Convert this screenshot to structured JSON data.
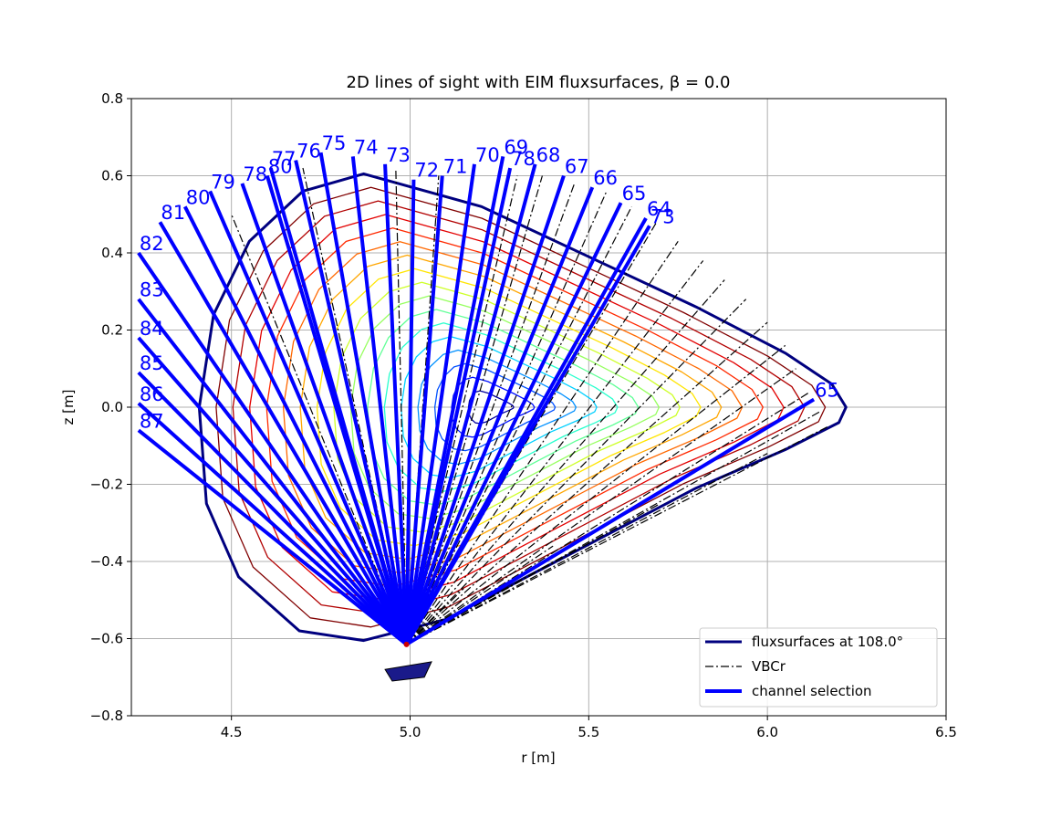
{
  "chart_data": {
    "type": "line",
    "title": "2D lines of sight with EIM fluxsurfaces, β = 0.0",
    "xlabel": "r [m]",
    "ylabel": "z [m]",
    "xlim": [
      4.22,
      6.5
    ],
    "ylim": [
      -0.8,
      0.8
    ],
    "xticks": [
      4.5,
      5.0,
      5.5,
      6.0,
      6.5
    ],
    "xtick_labels": [
      "4.5",
      "5.0",
      "5.5",
      "6.0",
      "6.5"
    ],
    "yticks": [
      -0.8,
      -0.6,
      -0.4,
      -0.2,
      0.0,
      0.2,
      0.4,
      0.6,
      0.8
    ],
    "ytick_labels": [
      "−0.8",
      "−0.6",
      "−0.4",
      "−0.2",
      "0.0",
      "0.2",
      "0.4",
      "0.6",
      "0.8"
    ],
    "grid": true,
    "legend_position": "lower-right",
    "legend": [
      {
        "label": "fluxsurfaces at 108.0°",
        "style": "solid",
        "color": "#00007f"
      },
      {
        "label": "VBCr",
        "style": "dashdot",
        "color": "#000000"
      },
      {
        "label": "channel selection",
        "style": "solid-thick",
        "color": "#0000ff"
      }
    ],
    "colors": {
      "channel": "#0000ff",
      "outer_surface": "#00007f",
      "vbcr": "#000000",
      "grid": "#b0b0b0"
    },
    "origin": {
      "r": 4.99,
      "z": -0.615
    },
    "fluxsurfaces": {
      "axis": {
        "r": 5.22,
        "z": 0.0
      },
      "boundary": [
        [
          4.87,
          0.605
        ],
        [
          4.7,
          0.56
        ],
        [
          4.55,
          0.43
        ],
        [
          4.45,
          0.24
        ],
        [
          4.41,
          0.0
        ],
        [
          4.43,
          -0.25
        ],
        [
          4.52,
          -0.44
        ],
        [
          4.69,
          -0.58
        ],
        [
          4.87,
          -0.605
        ],
        [
          5.1,
          -0.55
        ],
        [
          5.45,
          -0.38
        ],
        [
          5.8,
          -0.21
        ],
        [
          6.05,
          -0.11
        ],
        [
          6.2,
          -0.04
        ],
        [
          6.22,
          0.0
        ],
        [
          6.18,
          0.06
        ],
        [
          6.05,
          0.14
        ],
        [
          5.8,
          0.26
        ],
        [
          5.5,
          0.39
        ],
        [
          5.2,
          0.52
        ]
      ],
      "count": 17,
      "palette": [
        "#00007f",
        "#00009f",
        "#0010ff",
        "#0050ff",
        "#0090ff",
        "#00d0ff",
        "#29ffce",
        "#60ff97",
        "#97ff60",
        "#ceff29",
        "#ffe500",
        "#ffa600",
        "#ff6800",
        "#ff2900",
        "#e30000",
        "#b20000",
        "#800000"
      ]
    },
    "vbcr_ends": [
      [
        4.5,
        0.5
      ],
      [
        4.6,
        0.6
      ],
      [
        4.7,
        0.62
      ],
      [
        4.96,
        0.62
      ],
      [
        5.08,
        0.6
      ],
      [
        5.3,
        0.6
      ],
      [
        5.37,
        0.6
      ],
      [
        5.46,
        0.58
      ],
      [
        5.55,
        0.56
      ],
      [
        5.62,
        0.52
      ],
      [
        5.69,
        0.48
      ],
      [
        5.75,
        0.43
      ],
      [
        5.82,
        0.38
      ],
      [
        5.88,
        0.33
      ],
      [
        5.94,
        0.28
      ],
      [
        6.0,
        0.22
      ],
      [
        6.05,
        0.16
      ],
      [
        6.08,
        0.1
      ],
      [
        6.12,
        0.04
      ],
      [
        6.15,
        -0.01
      ],
      [
        6.17,
        -0.05
      ],
      [
        6.0,
        -0.12
      ],
      [
        5.7,
        -0.25
      ],
      [
        5.4,
        -0.36
      ],
      [
        5.15,
        -0.47
      ]
    ],
    "channels": [
      {
        "label": "65",
        "r": 6.13,
        "z": 0.02,
        "anchor": "right"
      },
      {
        "label": "87",
        "r": 4.24,
        "z": -0.06,
        "anchor": "left"
      },
      {
        "label": "86",
        "r": 4.24,
        "z": 0.01,
        "anchor": "left"
      },
      {
        "label": "85",
        "r": 4.24,
        "z": 0.09,
        "anchor": "left"
      },
      {
        "label": "84",
        "r": 4.24,
        "z": 0.18,
        "anchor": "left"
      },
      {
        "label": "83",
        "r": 4.24,
        "z": 0.28,
        "anchor": "left"
      },
      {
        "label": "82",
        "r": 4.24,
        "z": 0.4,
        "anchor": "left"
      },
      {
        "label": "81",
        "r": 4.3,
        "z": 0.48,
        "anchor": "left"
      },
      {
        "label": "80",
        "r": 4.37,
        "z": 0.52,
        "anchor": "left"
      },
      {
        "label": "79",
        "r": 4.44,
        "z": 0.56,
        "anchor": "left"
      },
      {
        "label": "78",
        "r": 4.53,
        "z": 0.58,
        "anchor": "left"
      },
      {
        "label": "80",
        "r": 4.6,
        "z": 0.6,
        "anchor": "left"
      },
      {
        "label": "77",
        "r": 4.61,
        "z": 0.62,
        "anchor": "left"
      },
      {
        "label": "76",
        "r": 4.68,
        "z": 0.64,
        "anchor": "left"
      },
      {
        "label": "75",
        "r": 4.75,
        "z": 0.66,
        "anchor": "left"
      },
      {
        "label": "74",
        "r": 4.84,
        "z": 0.65,
        "anchor": "left"
      },
      {
        "label": "73",
        "r": 4.93,
        "z": 0.63,
        "anchor": "left"
      },
      {
        "label": "72",
        "r": 5.01,
        "z": 0.59,
        "anchor": "left"
      },
      {
        "label": "71",
        "r": 5.09,
        "z": 0.6,
        "anchor": "left"
      },
      {
        "label": "70",
        "r": 5.18,
        "z": 0.63,
        "anchor": "left"
      },
      {
        "label": "69",
        "r": 5.26,
        "z": 0.65,
        "anchor": "left"
      },
      {
        "label": "78",
        "r": 5.28,
        "z": 0.62,
        "anchor": "left"
      },
      {
        "label": "68",
        "r": 5.35,
        "z": 0.63,
        "anchor": "left"
      },
      {
        "label": "67",
        "r": 5.43,
        "z": 0.6,
        "anchor": "left"
      },
      {
        "label": "66",
        "r": 5.51,
        "z": 0.57,
        "anchor": "left"
      },
      {
        "label": "65",
        "r": 5.59,
        "z": 0.53,
        "anchor": "left"
      },
      {
        "label": "64",
        "r": 5.66,
        "z": 0.49,
        "anchor": "left"
      },
      {
        "label": "73",
        "r": 5.67,
        "z": 0.47,
        "anchor": "left"
      }
    ]
  }
}
